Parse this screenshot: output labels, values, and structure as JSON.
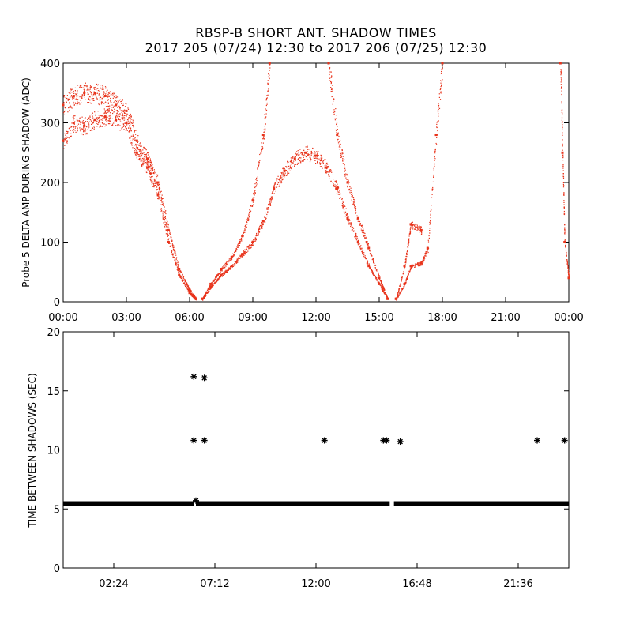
{
  "title_line1": "RBSP-B SHORT ANT. SHADOW TIMES",
  "title_line2": "2017 205 (07/24) 12:30 to 2017 206 (07/25) 12:30",
  "chart_data": [
    {
      "type": "scatter",
      "ylabel": "Probe 5 DELTA AMP DURING SHADOW (ADC)",
      "xlabel": "",
      "x_unit": "hours",
      "xlim": [
        0,
        24
      ],
      "ylim": [
        0,
        400
      ],
      "x_ticks": [
        {
          "value": 0,
          "label": "00:00"
        },
        {
          "value": 3,
          "label": "03:00"
        },
        {
          "value": 6,
          "label": "06:00"
        },
        {
          "value": 9,
          "label": "09:00"
        },
        {
          "value": 12,
          "label": "12:00"
        },
        {
          "value": 15,
          "label": "15:00"
        },
        {
          "value": 18,
          "label": "18:00"
        },
        {
          "value": 21,
          "label": "21:00"
        },
        {
          "value": 24,
          "label": "00:00"
        }
      ],
      "y_ticks": [
        {
          "value": 0,
          "label": "0"
        },
        {
          "value": 100,
          "label": "100"
        },
        {
          "value": 200,
          "label": "200"
        },
        {
          "value": 300,
          "label": "300"
        },
        {
          "value": 400,
          "label": "400"
        }
      ],
      "color": "#e8341c",
      "series": [
        {
          "values": [
            [
              0.0,
              270
            ],
            [
              0.5,
              300
            ],
            [
              1.0,
              295
            ],
            [
              1.5,
              305
            ],
            [
              2.0,
              310
            ],
            [
              2.5,
              305
            ],
            [
              3.0,
              300
            ],
            [
              3.5,
              250
            ],
            [
              4.0,
              225
            ],
            [
              4.5,
              180
            ],
            [
              5.0,
              100
            ],
            [
              5.5,
              45
            ],
            [
              6.0,
              15
            ],
            [
              6.3,
              5
            ]
          ]
        },
        {
          "values": [
            [
              0.0,
              330
            ],
            [
              0.5,
              345
            ],
            [
              1.0,
              350
            ],
            [
              1.5,
              350
            ],
            [
              2.0,
              345
            ],
            [
              2.5,
              330
            ],
            [
              3.0,
              320
            ],
            [
              3.5,
              270
            ],
            [
              4.0,
              240
            ],
            [
              4.5,
              200
            ],
            [
              5.0,
              120
            ],
            [
              5.5,
              55
            ],
            [
              6.0,
              20
            ],
            [
              6.3,
              5
            ]
          ]
        },
        {
          "values": [
            [
              6.6,
              5
            ],
            [
              7.0,
              25
            ],
            [
              7.5,
              45
            ],
            [
              8.0,
              60
            ],
            [
              8.5,
              80
            ],
            [
              9.0,
              100
            ],
            [
              9.5,
              135
            ],
            [
              10.0,
              190
            ],
            [
              10.5,
              220
            ],
            [
              11.0,
              240
            ],
            [
              11.5,
              250
            ],
            [
              12.0,
              245
            ],
            [
              12.5,
              225
            ],
            [
              13.0,
              190
            ],
            [
              13.5,
              140
            ],
            [
              14.0,
              100
            ],
            [
              14.5,
              60
            ],
            [
              15.0,
              30
            ],
            [
              15.4,
              5
            ]
          ]
        },
        {
          "values": [
            [
              6.6,
              5
            ],
            [
              7.0,
              30
            ],
            [
              7.5,
              55
            ],
            [
              8.0,
              75
            ],
            [
              8.5,
              110
            ],
            [
              9.0,
              170
            ],
            [
              9.5,
              280
            ],
            [
              9.8,
              400
            ]
          ]
        },
        {
          "values": [
            [
              12.6,
              400
            ],
            [
              13.0,
              280
            ],
            [
              13.5,
              200
            ],
            [
              14.0,
              140
            ],
            [
              14.5,
              90
            ],
            [
              15.0,
              40
            ],
            [
              15.4,
              5
            ]
          ]
        },
        {
          "values": [
            [
              15.8,
              5
            ],
            [
              16.2,
              30
            ],
            [
              16.5,
              60
            ],
            [
              17.0,
              65
            ],
            [
              17.3,
              90
            ],
            [
              17.7,
              280
            ],
            [
              18.0,
              400
            ]
          ]
        },
        {
          "values": [
            [
              15.8,
              5
            ],
            [
              16.2,
              60
            ],
            [
              16.5,
              130
            ],
            [
              17.0,
              120
            ]
          ]
        },
        {
          "values": [
            [
              23.6,
              400
            ],
            [
              23.7,
              250
            ],
            [
              23.8,
              100
            ],
            [
              24.0,
              40
            ]
          ]
        }
      ]
    },
    {
      "type": "scatter",
      "ylabel": "TIME BETWEEN SHADOWS (SEC)",
      "xlabel": "",
      "x_unit": "hours",
      "xlim": [
        0,
        24
      ],
      "ylim": [
        0,
        20
      ],
      "x_ticks": [
        {
          "value": 2.4,
          "label": "02:24"
        },
        {
          "value": 7.2,
          "label": "07:12"
        },
        {
          "value": 12.0,
          "label": "12:00"
        },
        {
          "value": 16.8,
          "label": "16:48"
        },
        {
          "value": 21.6,
          "label": "21:36"
        }
      ],
      "y_ticks": [
        {
          "value": 0,
          "label": "0"
        },
        {
          "value": 5,
          "label": "5"
        },
        {
          "value": 10,
          "label": "10"
        },
        {
          "value": 15,
          "label": "15"
        },
        {
          "value": 20,
          "label": "20"
        }
      ],
      "marker": "asterisk",
      "color": "#000000",
      "baseline": {
        "value": 5.45,
        "segments": [
          [
            0.0,
            6.2
          ],
          [
            6.3,
            15.5
          ],
          [
            15.7,
            24.0
          ]
        ]
      },
      "series": [
        {
          "values": [
            [
              6.2,
              16.2
            ],
            [
              6.7,
              16.1
            ],
            [
              6.2,
              10.8
            ],
            [
              6.7,
              10.8
            ],
            [
              12.4,
              10.8
            ],
            [
              15.2,
              10.8
            ],
            [
              15.35,
              10.8
            ],
            [
              16.0,
              10.7
            ],
            [
              22.5,
              10.8
            ],
            [
              23.8,
              10.8
            ],
            [
              6.3,
              5.7
            ]
          ]
        }
      ]
    }
  ]
}
